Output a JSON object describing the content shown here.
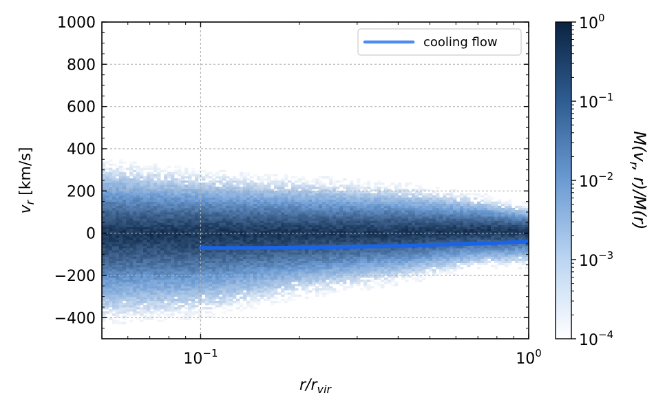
{
  "chart_data": {
    "type": "heatmap",
    "x_scale": "log",
    "xlim": [
      0.05,
      1.0
    ],
    "ylim": [
      -500,
      1000
    ],
    "grid": true,
    "x_tick_labels": [
      {
        "value": 0.1,
        "base": "10",
        "exp": "−1"
      },
      {
        "value": 1.0,
        "base": "10",
        "exp": "0"
      }
    ],
    "y_ticks": [
      -400,
      -200,
      0,
      200,
      400,
      600,
      800,
      1000
    ],
    "y_tick_labels": [
      "−400",
      "−200",
      "0",
      "200",
      "400",
      "600",
      "800",
      "1000"
    ],
    "xlabel": {
      "main": "r/r",
      "sub": "vir"
    },
    "ylabel": {
      "main": "v",
      "sub": "r",
      "rest": " [km/s]"
    },
    "legend": {
      "placement": "top-right",
      "entries": [
        {
          "label": "cooling flow",
          "color": "#4a8cf0"
        }
      ]
    },
    "histogram": {
      "description_bands": [
        {
          "x": 0.05,
          "upper": 340,
          "lower": -420,
          "center": 0
        },
        {
          "x": 0.1,
          "upper": 290,
          "lower": -390,
          "center": 0
        },
        {
          "x": 0.2,
          "upper": 260,
          "lower": -300,
          "center": 0
        },
        {
          "x": 0.4,
          "upper": 230,
          "lower": -230,
          "center": 0
        },
        {
          "x": 0.7,
          "upper": 180,
          "lower": -160,
          "center": 10
        },
        {
          "x": 1.0,
          "upper": 130,
          "lower": -150,
          "center": 10
        }
      ],
      "cmap_low": "#ffffff",
      "cmap_mid": "#6c9bd3",
      "cmap_high": "#0b2341"
    },
    "series": [
      {
        "name": "cooling flow",
        "color": "#1a64e8",
        "x": [
          0.1,
          0.15,
          0.2,
          0.3,
          0.4,
          0.5,
          0.6,
          0.7,
          0.8,
          0.9,
          1.0
        ],
        "y": [
          -70,
          -70,
          -68,
          -64,
          -60,
          -56,
          -52,
          -49,
          -46,
          -43,
          -40
        ]
      }
    ],
    "colorbar": {
      "scale": "log",
      "range": [
        0.0001,
        1
      ],
      "tick_labels": [
        {
          "value": 1,
          "base": "10",
          "exp": "0"
        },
        {
          "value": 0.1,
          "base": "10",
          "exp": "−1"
        },
        {
          "value": 0.01,
          "base": "10",
          "exp": "−2"
        },
        {
          "value": 0.001,
          "base": "10",
          "exp": "−3"
        },
        {
          "value": 0.0001,
          "base": "10",
          "exp": "−4"
        }
      ],
      "label": "M(v_r, r)/M(r)",
      "label_parts": {
        "a": "M(v",
        "sub": "r",
        "b": ", r)/M(r)"
      }
    }
  }
}
